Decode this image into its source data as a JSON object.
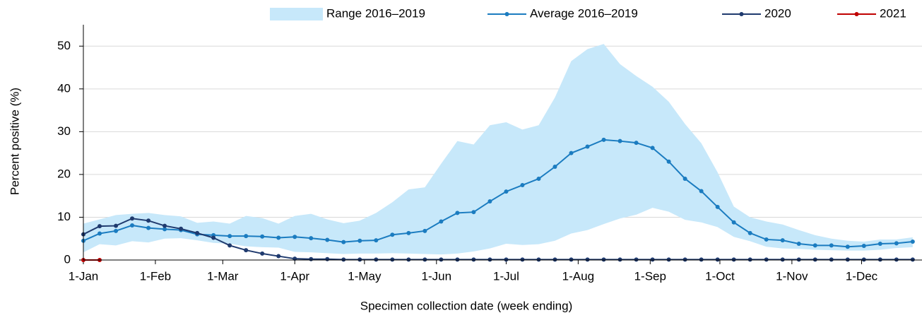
{
  "chart_data": {
    "type": "line",
    "x_label": "Specimen collection date (week ending)",
    "y_label": "Percent positive (%)",
    "x": [
      0,
      7,
      14,
      21,
      28,
      35,
      42,
      49,
      56,
      63,
      70,
      77,
      84,
      91,
      98,
      105,
      112,
      119,
      126,
      133,
      140,
      147,
      154,
      161,
      168,
      175,
      182,
      189,
      196,
      203,
      210,
      217,
      224,
      231,
      238,
      245,
      252,
      259,
      266,
      273,
      280,
      287,
      294,
      301,
      308,
      315,
      322,
      329,
      336,
      343,
      350,
      357
    ],
    "xlim": [
      0,
      361
    ],
    "xticks": [
      {
        "value": 0,
        "label": "1-Jan"
      },
      {
        "value": 31,
        "label": "1-Feb"
      },
      {
        "value": 60,
        "label": "1-Mar"
      },
      {
        "value": 91,
        "label": "1-Apr"
      },
      {
        "value": 121,
        "label": "1-May"
      },
      {
        "value": 152,
        "label": "1-Jun"
      },
      {
        "value": 182,
        "label": "1-Jul"
      },
      {
        "value": 213,
        "label": "1-Aug"
      },
      {
        "value": 244,
        "label": "1-Sep"
      },
      {
        "value": 274,
        "label": "1-Oct"
      },
      {
        "value": 305,
        "label": "1-Nov"
      },
      {
        "value": 335,
        "label": "1-Dec"
      }
    ],
    "ylim": [
      0,
      55
    ],
    "yticks": [
      0,
      10,
      20,
      30,
      40,
      50
    ],
    "grid": true,
    "series": [
      {
        "name": "Range 2016–2019",
        "type": "band",
        "color": "#c7e8fa",
        "upper": [
          8.5,
          9.5,
          10.5,
          10.8,
          11,
          10.5,
          10.2,
          8.7,
          9.0,
          8.5,
          10.3,
          9.8,
          8.5,
          10.3,
          10.8,
          9.5,
          8.6,
          9.2,
          11,
          13.5,
          16.5,
          17,
          22.5,
          27.8,
          27,
          31.5,
          32.2,
          30.5,
          31.5,
          38,
          46.5,
          49.3,
          50.5,
          45.8,
          43,
          40.5,
          37,
          31.8,
          27.3,
          20.5,
          12.5,
          10,
          9,
          8.3,
          7,
          5.8,
          5,
          4.5,
          4.3,
          4.8,
          4.8,
          5.3
        ],
        "lower": [
          1.8,
          3.7,
          3.4,
          4.4,
          4.1,
          5.0,
          5.1,
          4.6,
          4.0,
          3.8,
          3.2,
          3.0,
          2.9,
          1.9,
          1.8,
          1.6,
          1.4,
          1.5,
          1.5,
          1.6,
          1.5,
          1.4,
          1.3,
          1.5,
          2.0,
          2.7,
          3.8,
          3.5,
          3.7,
          4.5,
          6.2,
          7.0,
          8.4,
          9.7,
          10.6,
          12.2,
          11.3,
          9.4,
          8.8,
          7.7,
          5.4,
          4.4,
          3.1,
          2.7,
          2.6,
          2.4,
          2.3,
          2.2,
          2.2,
          2.4,
          2.8,
          3.0
        ]
      },
      {
        "name": "Average 2016–2019",
        "color": "#1b7cc0",
        "values": [
          4.5,
          6.2,
          6.8,
          8.1,
          7.5,
          7.2,
          7.0,
          6.0,
          5.8,
          5.6,
          5.6,
          5.5,
          5.2,
          5.4,
          5.1,
          4.7,
          4.2,
          4.5,
          4.6,
          5.9,
          6.3,
          6.8,
          9.0,
          11.0,
          11.2,
          13.7,
          16.0,
          17.5,
          19.0,
          21.8,
          25.0,
          26.5,
          28.1,
          27.8,
          27.4,
          26.2,
          23.0,
          19.0,
          16.1,
          12.4,
          8.8,
          6.3,
          4.8,
          4.6,
          3.8,
          3.4,
          3.4,
          3.1,
          3.3,
          3.8,
          3.9,
          4.3
        ]
      },
      {
        "name": "2020",
        "color": "#1f3a6e",
        "values": [
          6.0,
          7.9,
          8.0,
          9.7,
          9.2,
          8.0,
          7.3,
          6.3,
          5.2,
          3.4,
          2.3,
          1.5,
          0.9,
          0.3,
          0.2,
          0.2,
          0.1,
          0.1,
          0.1,
          0.1,
          0.1,
          0.1,
          0.1,
          0.1,
          0.1,
          0.1,
          0.1,
          0.1,
          0.1,
          0.1,
          0.1,
          0.1,
          0.1,
          0.1,
          0.1,
          0.1,
          0.1,
          0.1,
          0.1,
          0.1,
          0.1,
          0.1,
          0.1,
          0.1,
          0.1,
          0.1,
          0.1,
          0.1,
          0.1,
          0.1,
          0.1,
          0.1
        ]
      },
      {
        "name": "2021",
        "color": "#c00000",
        "values": [
          0,
          0,
          null,
          null,
          null,
          null,
          null,
          null,
          null,
          null,
          null,
          null,
          null,
          null,
          null,
          null,
          null,
          null,
          null,
          null,
          null,
          null,
          null,
          null,
          null,
          null,
          null,
          null,
          null,
          null,
          null,
          null,
          null,
          null,
          null,
          null,
          null,
          null,
          null,
          null,
          null,
          null,
          null,
          null,
          null,
          null,
          null,
          null,
          null,
          null,
          null,
          null
        ]
      }
    ]
  }
}
